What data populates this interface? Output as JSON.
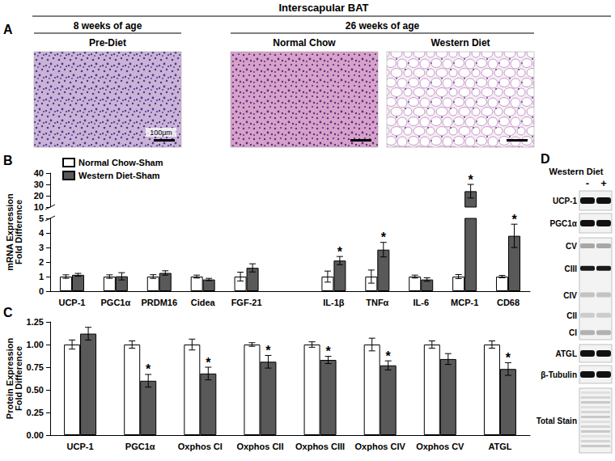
{
  "figure": {
    "title": "Interscapular BAT"
  },
  "panel_a": {
    "label": "A",
    "groups": [
      {
        "title": "8 weeks of age",
        "images": [
          "Pre-Diet"
        ]
      },
      {
        "title": "26 weeks of age",
        "images": [
          "Normal Chow",
          "Western Diet"
        ]
      }
    ],
    "scale_bar": "100μm"
  },
  "chart_data": [
    {
      "type": "bar",
      "title": "B",
      "ylabel": "mRNA Expression\nFold Difference",
      "categories": [
        "UCP-1",
        "PGC1α",
        "PRDM16",
        "Cidea",
        "FGF-21",
        null,
        "IL-1β",
        "TNFα",
        "IL-6",
        "MCP-1",
        "CD68"
      ],
      "series": [
        {
          "name": "Normal Chow-Sham",
          "color": "#ffffff",
          "values": [
            1,
            1,
            1,
            1,
            1,
            null,
            1,
            1,
            1,
            1,
            1
          ],
          "errors": [
            0.12,
            0.12,
            0.13,
            0.1,
            0.3,
            null,
            0.38,
            0.45,
            0.1,
            0.14,
            0.08
          ]
        },
        {
          "name": "Western Diet-Sham",
          "color": "#595959",
          "values": [
            1.12,
            1.02,
            1.25,
            0.8,
            1.6,
            null,
            2.1,
            2.85,
            0.8,
            24,
            3.8
          ],
          "errors": [
            0.1,
            0.25,
            0.15,
            0.08,
            0.28,
            null,
            0.28,
            0.5,
            0.12,
            6,
            0.8
          ],
          "significance": [
            null,
            null,
            null,
            null,
            null,
            null,
            "*",
            "*",
            null,
            "*",
            "*"
          ]
        }
      ],
      "ylim": [
        0,
        40
      ],
      "yticks": [
        0,
        1,
        2,
        3,
        4,
        5,
        10,
        20,
        30,
        40
      ],
      "y_break": [
        5,
        10
      ],
      "legend": "upper left",
      "grid": false
    },
    {
      "type": "bar",
      "title": "C",
      "ylabel": "Protein Expression\nFold Difference",
      "categories": [
        "UCP-1",
        "PGC1α",
        "Oxphos CI",
        "Oxphos CII",
        "Oxphos CIII",
        "Oxphos CIV",
        "Oxphos CV",
        "ATGL"
      ],
      "series": [
        {
          "name": "Normal Chow-Sham",
          "color": "#ffffff",
          "values": [
            1,
            1,
            1,
            1,
            1,
            1,
            1,
            1
          ],
          "errors": [
            0.05,
            0.04,
            0.06,
            0.02,
            0.03,
            0.07,
            0.04,
            0.04
          ]
        },
        {
          "name": "Western Diet-Sham",
          "color": "#595959",
          "values": [
            1.12,
            0.6,
            0.68,
            0.81,
            0.83,
            0.77,
            0.84,
            0.73
          ],
          "errors": [
            0.07,
            0.07,
            0.07,
            0.07,
            0.04,
            0.05,
            0.06,
            0.07
          ],
          "significance": [
            null,
            "*",
            "*",
            "*",
            "*",
            "*",
            null,
            "*"
          ]
        }
      ],
      "ylim": [
        0,
        1.25
      ],
      "yticks": [
        {
          "value": 0,
          "label": "0.00"
        },
        0.25,
        {
          "value": 0.5,
          "label": "0.50"
        },
        0.75,
        {
          "value": 1,
          "label": "1.00"
        },
        1.25
      ],
      "grid": false
    }
  ],
  "panel_d": {
    "label": "D",
    "treatment": "Western Diet",
    "lanes": [
      "-",
      "+"
    ],
    "blots": [
      {
        "labels": [
          "UCP-1"
        ]
      },
      {
        "labels": [
          "PGC1α"
        ]
      },
      {
        "labels": [
          "CV",
          "CIII",
          "CIV",
          "CII",
          "CI"
        ]
      },
      {
        "labels": [
          "ATGL"
        ]
      },
      {
        "labels": [
          "β-Tubulin"
        ]
      },
      {
        "labels": [
          "Total Stain"
        ]
      }
    ]
  }
}
